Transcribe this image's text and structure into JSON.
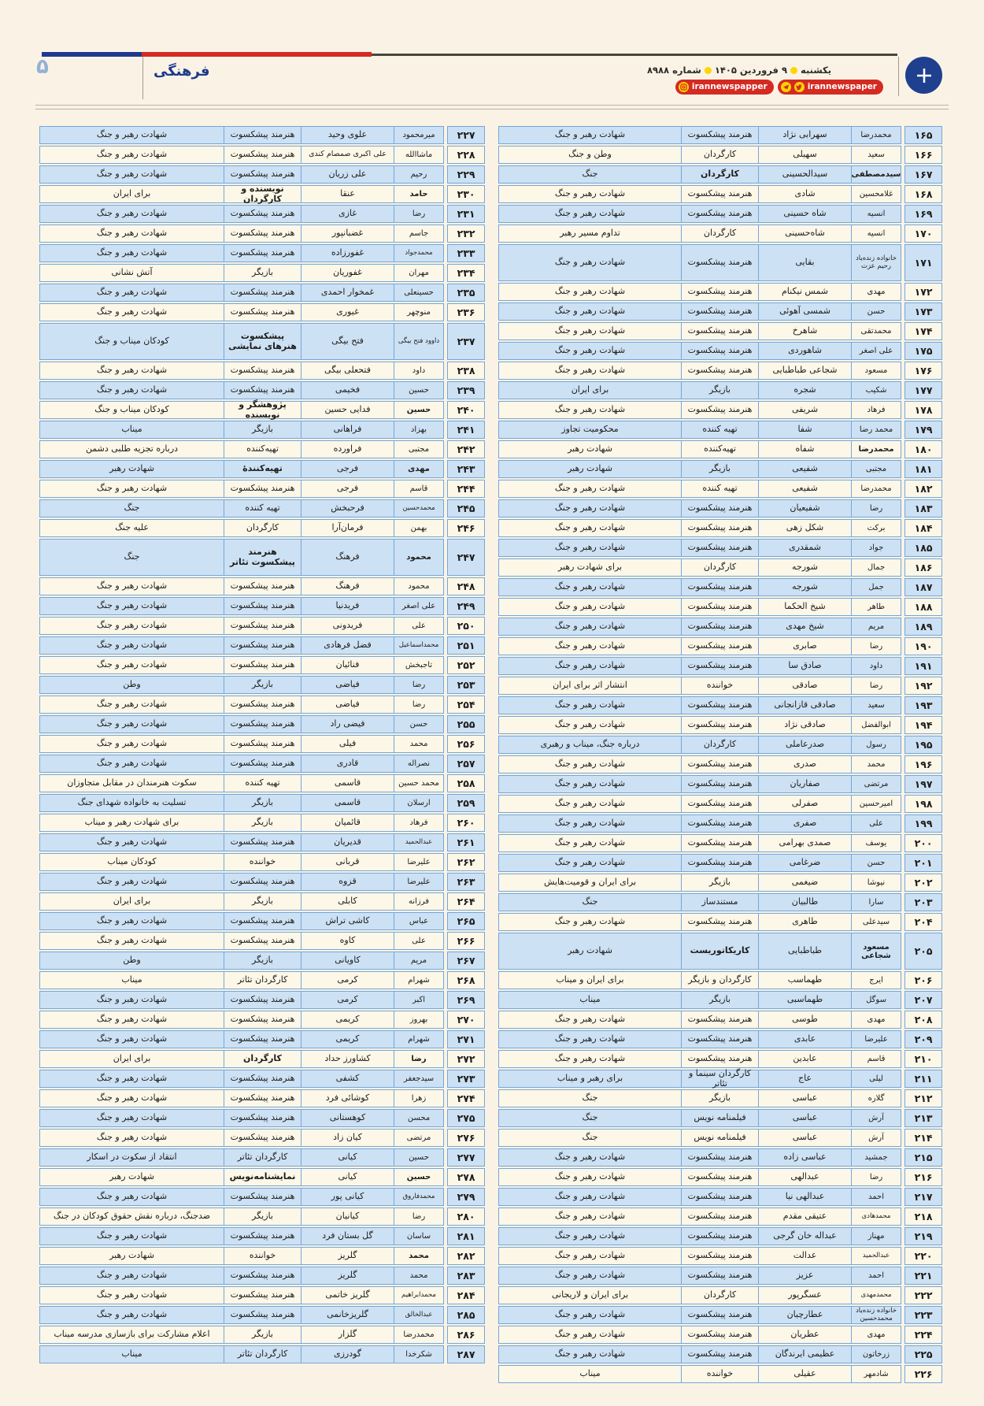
{
  "header": {
    "page_number": "۵",
    "section": "فرهنگی",
    "weekday": "یکشنبه",
    "date": "۹ فروردین ۱۴۰۵",
    "issue": "شماره ۸۹۸۸",
    "social_badge_1": "irannewspaper",
    "social_badge_2": "irannewspapper",
    "accent_blue": "#20398f",
    "accent_red": "#d32b24",
    "badge_red": "#d42a22",
    "dot_yellow": "#ffd400"
  },
  "tables": {
    "right_rows": [
      [
        "۱۶۵",
        "محمدرضا",
        "سهرابی نژاد",
        "هنرمند پیشکسوت",
        "شهادت رهبر و جنگ",
        ""
      ],
      [
        "۱۶۶",
        "سعید",
        "سهیلی",
        "کارگردان",
        "وطن و جنگ",
        ""
      ],
      [
        "۱۶۷",
        "سیدمصطفی",
        "سیدالحسینی",
        "کارگردان",
        "جنگ",
        "bn bj"
      ],
      [
        "۱۶۸",
        "غلامحسین",
        "شادی",
        "هنرمند پیشکسوت",
        "شهادت رهبر و جنگ",
        ""
      ],
      [
        "۱۶۹",
        "انسیه",
        "شاه حسینی",
        "هنرمند پیشکسوت",
        "شهادت رهبر و جنگ",
        ""
      ],
      [
        "۱۷۰",
        "انسیه",
        "شاه‌حسینی",
        "کارگردان",
        "تداوم مسیر رهبر",
        ""
      ],
      [
        "۱۷۱",
        "خانواده زنده‌یاد رحیم عزت",
        "بقایی",
        "هنرمند پیشکسوت",
        "شهادت رهبر و جنگ",
        "tall sm"
      ],
      [
        "۱۷۲",
        "مهدی",
        "شمس نیکنام",
        "هنرمند پیشکسوت",
        "شهادت رهبر و جنگ",
        ""
      ],
      [
        "۱۷۳",
        "حسن",
        "شمسی آهوئی",
        "هنرمند پیشکسوت",
        "شهادت رهبر و جنگ",
        ""
      ],
      [
        "۱۷۴",
        "محمدتقی",
        "شاهرخ",
        "هنرمند پیشکسوت",
        "شهادت رهبر و جنگ",
        ""
      ],
      [
        "۱۷۵",
        "علی اصغر",
        "شاهوردی",
        "هنرمند پیشکسوت",
        "شهادت رهبر و جنگ",
        ""
      ],
      [
        "۱۷۶",
        "مسعود",
        "شجاعی طباطبایی",
        "هنرمند پیشکسوت",
        "شهادت رهبر و جنگ",
        ""
      ],
      [
        "۱۷۷",
        "شکیب",
        "شجره",
        "بازیگر",
        "برای ایران",
        ""
      ],
      [
        "۱۷۸",
        "فرهاد",
        "شریفی",
        "هنرمند پیشکسوت",
        "شهادت رهبر و جنگ",
        ""
      ],
      [
        "۱۷۹",
        "محمد رضا",
        "شفا",
        "تهیه کننده",
        "محکومیت تجاوز",
        ""
      ],
      [
        "۱۸۰",
        "محمدرضا",
        "شفاه",
        "تهیه‌کننده",
        "شهادت رهبر",
        "bn"
      ],
      [
        "۱۸۱",
        "مجتبی",
        "شفیعی",
        "بازیگر",
        "شهادت رهبر",
        ""
      ],
      [
        "۱۸۲",
        "محمدرضا",
        "شفیعی",
        "تهیه کننده",
        "شهادت رهبر و جنگ",
        ""
      ],
      [
        "۱۸۳",
        "رضا",
        "شفیعیان",
        "هنرمند پیشکسوت",
        "شهادت رهبر و جنگ",
        ""
      ],
      [
        "۱۸۴",
        "برکت",
        "شکل زهی",
        "هنرمند پیشکسوت",
        "شهادت رهبر و جنگ",
        ""
      ],
      [
        "۱۸۵",
        "جواد",
        "شمقدری",
        "هنرمند پیشکسوت",
        "شهادت رهبر و جنگ",
        ""
      ],
      [
        "۱۸۶",
        "جمال",
        "شورجه",
        "کارگردان",
        "برای شهادت رهبر",
        ""
      ],
      [
        "۱۸۷",
        "جمل",
        "شورجه",
        "هنرمند پیشکسوت",
        "شهادت رهبر و جنگ",
        ""
      ],
      [
        "۱۸۸",
        "طاهر",
        "شیخ الحکما",
        "هنرمند پیشکسوت",
        "شهادت رهبر و جنگ",
        ""
      ],
      [
        "۱۸۹",
        "مریم",
        "شیخ مهدی",
        "هنرمند پیشکسوت",
        "شهادت رهبر و جنگ",
        ""
      ],
      [
        "۱۹۰",
        "رضا",
        "صابری",
        "هنرمند پیشکسوت",
        "شهادت رهبر و جنگ",
        ""
      ],
      [
        "۱۹۱",
        "داود",
        "صادق سا",
        "هنرمند پیشکسوت",
        "شهادت رهبر و جنگ",
        ""
      ],
      [
        "۱۹۲",
        "رضا",
        "صادقی",
        "خواننده",
        "انتشار اثر برای ایران",
        ""
      ],
      [
        "۱۹۳",
        "سعید",
        "صادقی قازانجانی",
        "هنرمند پیشکسوت",
        "شهادت رهبر و جنگ",
        ""
      ],
      [
        "۱۹۴",
        "ابوالفضل",
        "صادقی نژاد",
        "هنرمند پیشکسوت",
        "شهادت رهبر و جنگ",
        ""
      ],
      [
        "۱۹۵",
        "رسول",
        "صدرعاملی",
        "کارگردان",
        "درباره جنگ، میناب و رهبری",
        ""
      ],
      [
        "۱۹۶",
        "محمد",
        "صدری",
        "هنرمند پیشکسوت",
        "شهادت رهبر و جنگ",
        ""
      ],
      [
        "۱۹۷",
        "مرتضی",
        "صفاریان",
        "هنرمند پیشکسوت",
        "شهادت رهبر و جنگ",
        ""
      ],
      [
        "۱۹۸",
        "امیرحسین",
        "صفرلی",
        "هنرمند پیشکسوت",
        "شهادت رهبر و جنگ",
        ""
      ],
      [
        "۱۹۹",
        "علی",
        "صفری",
        "هنرمند پیشکسوت",
        "شهادت رهبر و جنگ",
        ""
      ],
      [
        "۲۰۰",
        "یوسف",
        "صمدی بهرامی",
        "هنرمند پیشکسوت",
        "شهادت رهبر و جنگ",
        ""
      ],
      [
        "۲۰۱",
        "حسن",
        "ضرغامی",
        "هنرمند پیشکسوت",
        "شهادت رهبر و جنگ",
        ""
      ],
      [
        "۲۰۲",
        "نیوشا",
        "ضیغمی",
        "بازیگر",
        "برای ایران و قومیت‌هایش",
        ""
      ],
      [
        "۲۰۳",
        "سارا",
        "طالبیان",
        "مستندساز",
        "جنگ",
        ""
      ],
      [
        "۲۰۴",
        "سیدعلی",
        "طاهری",
        "هنرمند پیشکسوت",
        "شهادت رهبر و جنگ",
        ""
      ],
      [
        "۲۰۵",
        "مسعود شجاعی",
        "طباطبایی",
        "کاریکاتوریست",
        "شهادت رهبر",
        "tall bn bj"
      ],
      [
        "۲۰۶",
        "ایرج",
        "طهماسب",
        "کارگردان و بازیگر",
        "برای ایران و میناب",
        ""
      ],
      [
        "۲۰۷",
        "سوگل",
        "طهماسبی",
        "بازیگر",
        "میناب",
        ""
      ],
      [
        "۲۰۸",
        "مهدی",
        "طوسی",
        "هنرمند پیشکسوت",
        "شهادت رهبر و جنگ",
        ""
      ],
      [
        "۲۰۹",
        "علیرضا",
        "عابدی",
        "هنرمند پیشکسوت",
        "شهادت رهبر و جنگ",
        ""
      ],
      [
        "۲۱۰",
        "قاسم",
        "عابدین",
        "هنرمند پیشکسوت",
        "شهادت رهبر و جنگ",
        ""
      ],
      [
        "۲۱۱",
        "لیلی",
        "عاج",
        "کارگردان سینما و تئاتر",
        "برای رهبر و میناب",
        ""
      ],
      [
        "۲۱۲",
        "گلاره",
        "عباسی",
        "بازیگر",
        "جنگ",
        ""
      ],
      [
        "۲۱۳",
        "آرش",
        "عباسی",
        "فیلمنامه نویس",
        "جنگ",
        ""
      ],
      [
        "۲۱۴",
        "آرش",
        "عباسی",
        "فیلمنامه نویس",
        "جنگ",
        ""
      ],
      [
        "۲۱۵",
        "جمشید",
        "عباسی زاده",
        "هنرمند پیشکسوت",
        "شهادت رهبر و جنگ",
        ""
      ],
      [
        "۲۱۶",
        "رضا",
        "عبدالهی",
        "هنرمند پیشکسوت",
        "شهادت رهبر و جنگ",
        ""
      ],
      [
        "۲۱۷",
        "احمد",
        "عبدالهی نیا",
        "هنرمند پیشکسوت",
        "شهادت رهبر و جنگ",
        ""
      ],
      [
        "۲۱۸",
        "محمدهادی",
        "عتیقی مقدم",
        "هنرمند پیشکسوت",
        "شهادت رهبر و جنگ",
        "sm"
      ],
      [
        "۲۱۹",
        "مهناز",
        "عبداله خان گرجی",
        "هنرمند پیشکسوت",
        "شهادت رهبر و جنگ",
        ""
      ],
      [
        "۲۲۰",
        "عبدالحمید",
        "عدالت",
        "هنرمند پیشکسوت",
        "شهادت رهبر و جنگ",
        "sm"
      ],
      [
        "۲۲۱",
        "احمد",
        "عزیز",
        "هنرمند پیشکسوت",
        "شهادت رهبر و جنگ",
        ""
      ],
      [
        "۲۲۲",
        "محمدمهدی",
        "عسگرپور",
        "کارگردان",
        "برای ایران و لاریجانی",
        "sm"
      ],
      [
        "۲۲۳",
        "خانواده زنده‌یاد محمدحسین",
        "عطارچیان",
        "هنرمند پیشکسوت",
        "شهادت رهبر و جنگ",
        "sm"
      ],
      [
        "۲۲۴",
        "مهدی",
        "عطریان",
        "هنرمند پیشکسوت",
        "شهادت رهبر و جنگ",
        ""
      ],
      [
        "۲۲۵",
        "زرخاتون",
        "عظیمی ایرندگان",
        "هنرمند پیشکسوت",
        "شهادت رهبر و جنگ",
        ""
      ],
      [
        "۲۲۶",
        "شادمهر",
        "عقیلی",
        "خواننده",
        "میناب",
        ""
      ]
    ],
    "left_rows": [
      [
        "۲۲۷",
        "میرمحمود",
        "علوی وحید",
        "هنرمند پیشکسوت",
        "شهادت رهبر و جنگ",
        ""
      ],
      [
        "۲۲۸",
        "ماشاالله",
        "علی اکبری صمصام کندی",
        "هنرمند پیشکسوت",
        "شهادت رهبر و جنگ",
        "sml"
      ],
      [
        "۲۲۹",
        "رحیم",
        "علی زریان",
        "هنرمند پیشکسوت",
        "شهادت رهبر و جنگ",
        ""
      ],
      [
        "۲۳۰",
        "حامد",
        "عنقا",
        "نویسنده و کارگردان",
        "برای ایران",
        "bn bj"
      ],
      [
        "۲۳۱",
        "رضا",
        "غازی",
        "هنرمند پیشکسوت",
        "شهادت رهبر و جنگ",
        ""
      ],
      [
        "۲۳۲",
        "جاسم",
        "غضبانپور",
        "هنرمند پیشکسوت",
        "شهادت رهبر و جنگ",
        ""
      ],
      [
        "۲۳۳",
        "محمدجواد",
        "غفورزاده",
        "هنرمند پیشکسوت",
        "شهادت رهبر و جنگ",
        "sm"
      ],
      [
        "۲۳۴",
        "مهران",
        "غفوریان",
        "بازیگر",
        "آتش نشانی",
        ""
      ],
      [
        "۲۳۵",
        "حسینعلی",
        "غمخوار احمدی",
        "هنرمند پیشکسوت",
        "شهادت رهبر و جنگ",
        ""
      ],
      [
        "۲۳۶",
        "منوچهر",
        "غیوری",
        "هنرمند پیشکسوت",
        "شهادت رهبر و جنگ",
        ""
      ],
      [
        "۲۳۷",
        "داوود فتح بیگی",
        "فتح بیگی",
        "پیشکسوت هنرهای نمایشی",
        "کودکان میناب و جنگ",
        "tall bj sm"
      ],
      [
        "۲۳۸",
        "داود",
        "فتحعلی بیگی",
        "هنرمند پیشکسوت",
        "شهادت رهبر و جنگ",
        ""
      ],
      [
        "۲۳۹",
        "حسین",
        "فخیمی",
        "هنرمند پیشکسوت",
        "شهادت رهبر و جنگ",
        ""
      ],
      [
        "۲۴۰",
        "حسین",
        "فدایی حسین",
        "پژوهشگر و نویسنده",
        "کودکان میناب و جنگ",
        "bn bj"
      ],
      [
        "۲۴۱",
        "بهزاد",
        "فراهانی",
        "بازیگر",
        "میناب",
        ""
      ],
      [
        "۲۴۲",
        "مجتبی",
        "فراورده",
        "تهیه‌کننده",
        "درباره تجزیه طلبی دشمن",
        ""
      ],
      [
        "۲۴۳",
        "مهدی",
        "فرجی",
        "تهیه‌کنندهٔ",
        "شهادت رهبر",
        "bn bj"
      ],
      [
        "۲۴۴",
        "قاسم",
        "فرجی",
        "هنرمند پیشکسوت",
        "شهادت رهبر و جنگ",
        ""
      ],
      [
        "۲۴۵",
        "محمدحسین",
        "فرحبخش",
        "تهیه کننده",
        "جنگ",
        "sm"
      ],
      [
        "۲۴۶",
        "بهمن",
        "فرمان‌آرا",
        "کارگردان",
        "علیه جنگ",
        ""
      ],
      [
        "۲۴۷",
        "محمود",
        "فرهنگ",
        "هنرمند پیشکسوت تئاتر",
        "جنگ",
        "tall bn bj"
      ],
      [
        "۲۴۸",
        "محمود",
        "فرهنگ",
        "هنرمند پیشکسوت",
        "شهادت رهبر و جنگ",
        ""
      ],
      [
        "۲۴۹",
        "علی اصغر",
        "فریدنیا",
        "هنرمند پیشکسوت",
        "شهادت رهبر و جنگ",
        ""
      ],
      [
        "۲۵۰",
        "علی",
        "فریدونی",
        "هنرمند پیشکسوت",
        "شهادت رهبر و جنگ",
        ""
      ],
      [
        "۲۵۱",
        "محمداسماعیل",
        "فضل فرهادی",
        "هنرمند پیشکسوت",
        "شهادت رهبر و جنگ",
        "sm"
      ],
      [
        "۲۵۲",
        "تاجبخش",
        "فنائیان",
        "هنرمند پیشکسوت",
        "شهادت رهبر و جنگ",
        ""
      ],
      [
        "۲۵۳",
        "رضا",
        "فیاضی",
        "بازیگر",
        "وطن",
        ""
      ],
      [
        "۲۵۴",
        "رضا",
        "فیاضی",
        "هنرمند پیشکسوت",
        "شهادت رهبر و جنگ",
        ""
      ],
      [
        "۲۵۵",
        "حسن",
        "فیضی راد",
        "هنرمند پیشکسوت",
        "شهادت رهبر و جنگ",
        ""
      ],
      [
        "۲۵۶",
        "محمد",
        "فیلی",
        "هنرمند پیشکسوت",
        "شهادت رهبر و جنگ",
        ""
      ],
      [
        "۲۵۷",
        "نصراله",
        "قادری",
        "هنرمند پیشکسوت",
        "شهادت رهبر و جنگ",
        ""
      ],
      [
        "۲۵۸",
        "محمد حسین",
        "قاسمی",
        "تهیه کننده",
        "سکوت هنرمندان در مقابل متجاوزان",
        ""
      ],
      [
        "۲۵۹",
        "ارسلان",
        "قاسمی",
        "بازیگر",
        "تسلیت به خانواده شهدای جنگ",
        ""
      ],
      [
        "۲۶۰",
        "فرهاد",
        "قائمیان",
        "بازیگر",
        "برای شهادت رهبر و میناب",
        ""
      ],
      [
        "۲۶۱",
        "عبدالحمید",
        "قدیریان",
        "هنرمند پیشکسوت",
        "شهادت رهبر و جنگ",
        "sm"
      ],
      [
        "۲۶۲",
        "علیرضا",
        "قربانی",
        "خواننده",
        "کودکان میناب",
        ""
      ],
      [
        "۲۶۳",
        "علیرضا",
        "قزوه",
        "هنرمند پیشکسوت",
        "شهادت رهبر و جنگ",
        ""
      ],
      [
        "۲۶۴",
        "فرزانه",
        "کابلی",
        "بازیگر",
        "برای ایران",
        ""
      ],
      [
        "۲۶۵",
        "عباس",
        "کاشی تراش",
        "هنرمند پیشکسوت",
        "شهادت رهبر و جنگ",
        ""
      ],
      [
        "۲۶۶",
        "علی",
        "کاوه",
        "هنرمند پیشکسوت",
        "شهادت رهبر و جنگ",
        ""
      ],
      [
        "۲۶۷",
        "مریم",
        "کاویانی",
        "بازیگر",
        "وطن",
        ""
      ],
      [
        "۲۶۸",
        "شهرام",
        "کرمی",
        "کارگردان تئاتر",
        "میناب",
        ""
      ],
      [
        "۲۶۹",
        "اکبر",
        "کرمی",
        "هنرمند پیشکسوت",
        "شهادت رهبر و جنگ",
        ""
      ],
      [
        "۲۷۰",
        "بهروز",
        "کریمی",
        "هنرمند پیشکسوت",
        "شهادت رهبر و جنگ",
        ""
      ],
      [
        "۲۷۱",
        "شهرام",
        "کریمی",
        "هنرمند پیشکسوت",
        "شهادت رهبر و جنگ",
        ""
      ],
      [
        "۲۷۲",
        "رضا",
        "کشاورز حداد",
        "کارگردان",
        "برای ایران",
        "bn bj"
      ],
      [
        "۲۷۳",
        "سیدجعفر",
        "کشفی",
        "هنرمند پیشکسوت",
        "شهادت رهبر و جنگ",
        ""
      ],
      [
        "۲۷۴",
        "زهرا",
        "کوشائی فرد",
        "هنرمند پیشکسوت",
        "شهادت رهبر و جنگ",
        ""
      ],
      [
        "۲۷۵",
        "محسن",
        "کوهستانی",
        "هنرمند پیشکسوت",
        "شهادت رهبر و جنگ",
        ""
      ],
      [
        "۲۷۶",
        "مرتضی",
        "کیان زاد",
        "هنرمند پیشکسوت",
        "شهادت رهبر و جنگ",
        ""
      ],
      [
        "۲۷۷",
        "حسین",
        "کیانی",
        "کارگردان تئاتر",
        "انتقاد از سکوت در اسکار",
        ""
      ],
      [
        "۲۷۸",
        "حسین",
        "کیانی",
        "نمایشنامه‌نویس",
        "شهادت رهبر",
        "bn bj"
      ],
      [
        "۲۷۹",
        "محمدفاروق",
        "کیانی پور",
        "هنرمند پیشکسوت",
        "شهادت رهبر و جنگ",
        "sm"
      ],
      [
        "۲۸۰",
        "رضا",
        "کیانیان",
        "بازیگر",
        "ضدجنگ، درباره نقش حقوق کودکان در جنگ",
        ""
      ],
      [
        "۲۸۱",
        "ساسان",
        "گل بستان فرد",
        "هنرمند پیشکسوت",
        "شهادت رهبر و جنگ",
        ""
      ],
      [
        "۲۸۲",
        "محمد",
        "گلریز",
        "خواننده",
        "شهادت رهبر",
        "bn"
      ],
      [
        "۲۸۳",
        "محمد",
        "گلریز",
        "هنرمند پیشکسوت",
        "شهادت رهبر و جنگ",
        ""
      ],
      [
        "۲۸۴",
        "محمدابراهیم",
        "گلریز خاتمی",
        "هنرمند پیشکسوت",
        "شهادت رهبر و جنگ",
        "sm"
      ],
      [
        "۲۸۵",
        "عبدالخالق",
        "گلریزخانمی",
        "هنرمند پیشکسوت",
        "شهادت رهبر و جنگ",
        "sm"
      ],
      [
        "۲۸۶",
        "محمدرضا",
        "گلزار",
        "بازیگر",
        "اعلام مشارکت برای بازسازی مدرسه میناب",
        ""
      ],
      [
        "۲۸۷",
        "شکرخدا",
        "گودرزی",
        "کارگردان تئاتر",
        "میناب",
        ""
      ]
    ]
  }
}
